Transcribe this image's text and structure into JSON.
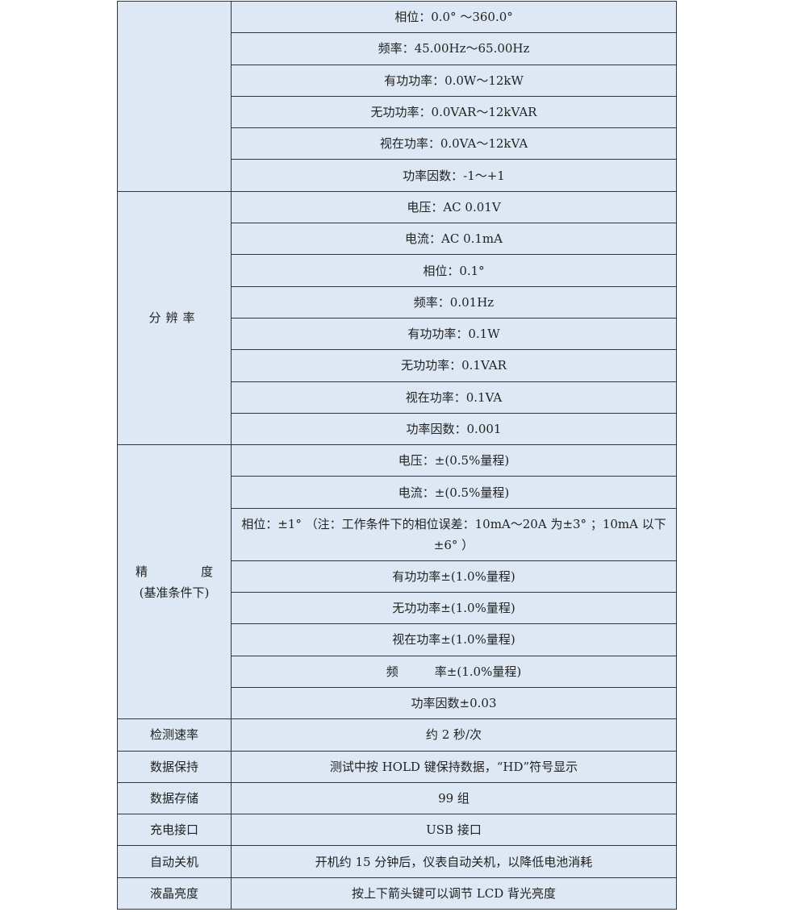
{
  "range_rows": [
    "相位：0.0° ～360.0°",
    "频率：45.00Hz～65.00Hz",
    "有功功率：0.0W～12kW",
    "无功功率：0.0VAR～12kVAR",
    "视在功率：0.0VA～12kVA",
    "功率因数：-1～+1"
  ],
  "resolution": {
    "label": "分辨率",
    "rows": [
      "电压：AC 0.01V",
      "电流：AC 0.1mA",
      "相位：0.1°",
      "频率：0.01Hz",
      "有功功率：0.1W",
      "无功功率：0.1VAR",
      "视在功率：0.1VA",
      "功率因数：0.001"
    ]
  },
  "accuracy": {
    "label_a": "精",
    "label_b": "度",
    "label_sub": "(基准条件下)",
    "rows": [
      "电压：±(0.5%量程)",
      "电流：±(0.5%量程)",
      "相位：±1° （注：工作条件下的相位误差：10mA～20A 为±3° ；10mA 以下±6° ）",
      "有功功率±(1.0%量程)",
      "无功功率±(1.0%量程)",
      "视在功率±(1.0%量程)",
      "频　　　率±(1.0%量程)",
      "功率因数±0.03"
    ]
  },
  "specs": [
    {
      "label": "检测速率",
      "value": "约 2 秒/次"
    },
    {
      "label": "数据保持",
      "value": "测试中按 HOLD 键保持数据，“HD”符号显示"
    },
    {
      "label": "数据存储",
      "value": "99 组"
    },
    {
      "label": "充电接口",
      "value": "USB 接口"
    },
    {
      "label": "自动关机",
      "value": "开机约 15 分钟后，仪表自动关机，以降低电池消耗"
    },
    {
      "label": "液晶亮度",
      "value": "按上下箭头键可以调节 LCD 背光亮度"
    }
  ]
}
